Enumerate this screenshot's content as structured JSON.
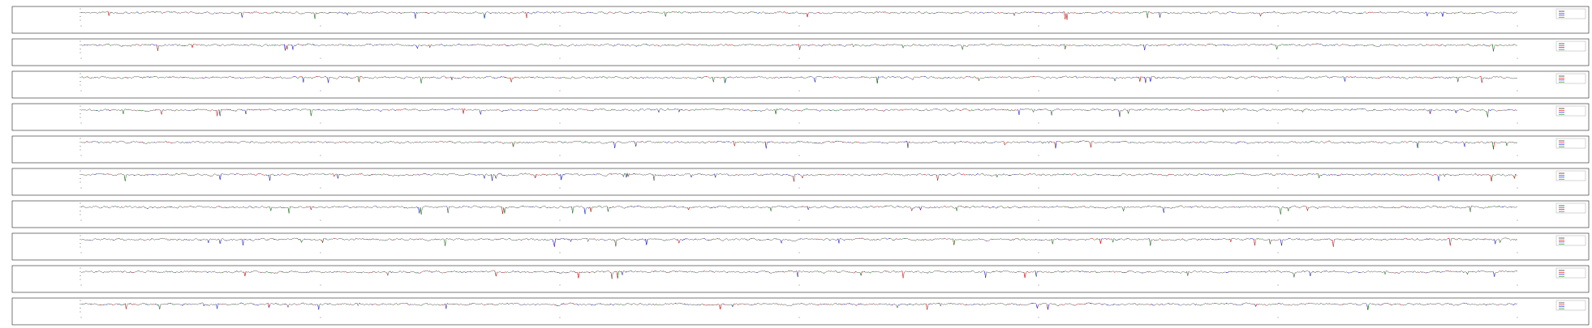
{
  "chart_data": {
    "type": "line",
    "panel_count": 10,
    "series": [
      {
        "color": "#000000"
      },
      {
        "color": "#ff0000"
      },
      {
        "color": "#0000ff"
      },
      {
        "color": "#008000"
      }
    ],
    "ylim": [
      -10,
      5
    ],
    "yticks": [
      5,
      0,
      -5,
      -10
    ],
    "legend_position": "top-right",
    "grid": false
  }
}
